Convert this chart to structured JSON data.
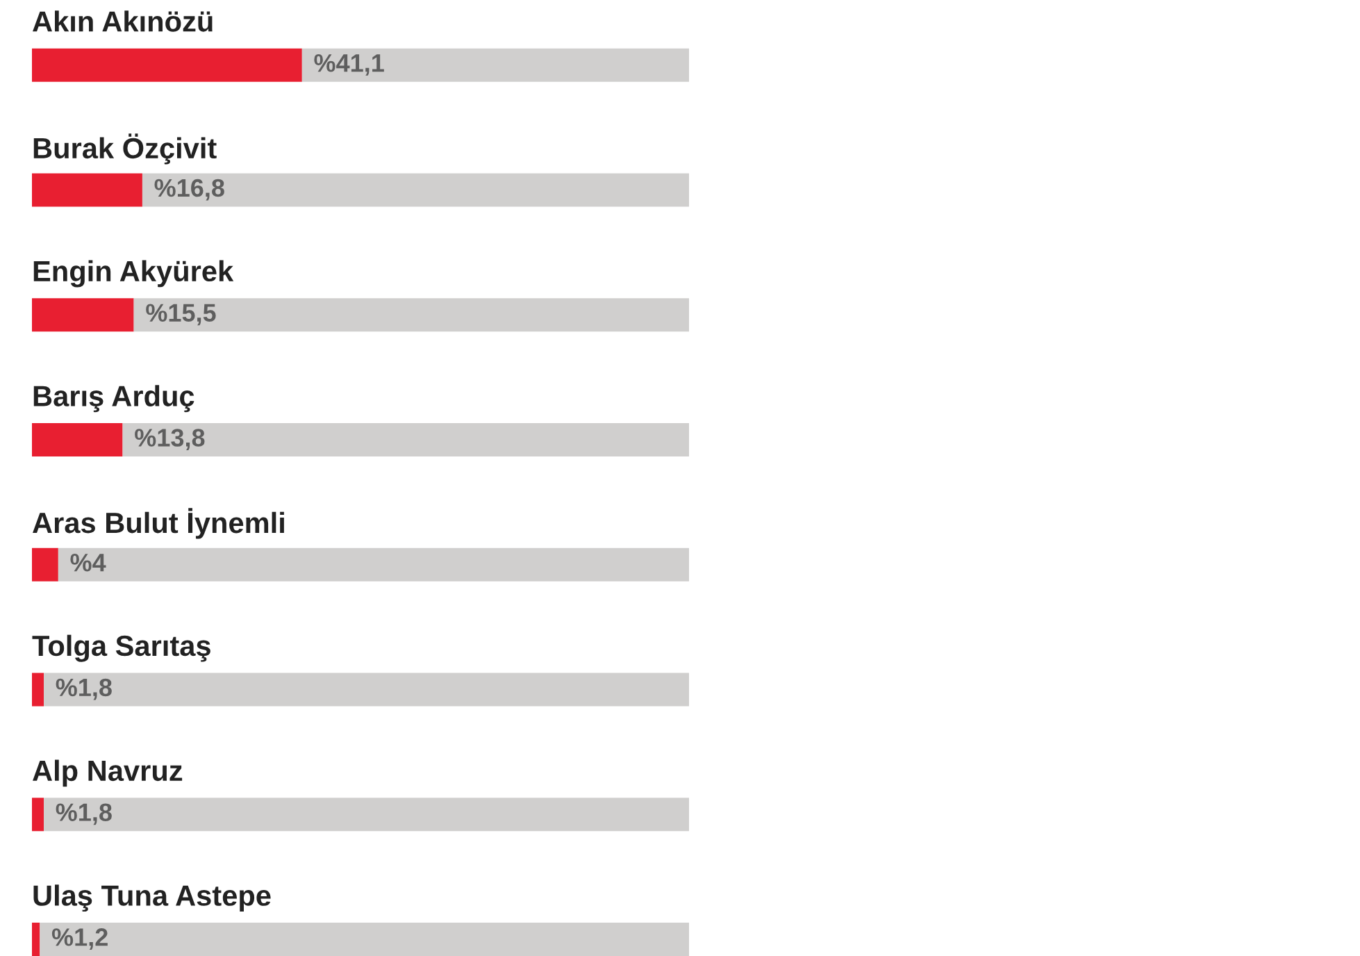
{
  "chart_data": {
    "type": "bar",
    "orientation": "horizontal",
    "stacked": true,
    "categories": [
      "Akın Akınözü",
      "Burak Özçivit",
      "Engin Akyürek",
      "Barış Arduç",
      "Aras Bulut İynemli",
      "Tolga Sarıtaş",
      "Alp Navruz",
      "Ulaş Tuna Astepe"
    ],
    "series": [
      {
        "color": "#e81f31",
        "values": [
          41.1,
          16.8,
          15.5,
          13.8,
          4,
          1.8,
          1.8,
          1.2
        ],
        "value_labels": [
          "%41,1",
          "%16,8",
          "%15,5",
          "%13,8",
          "%4",
          "%1,8",
          "%1,8",
          "%1,2"
        ]
      },
      {
        "color": "#d0cfce",
        "values": [
          58.9,
          83.2,
          84.5,
          86.2,
          96,
          98.2,
          98.2,
          98.8
        ]
      }
    ]
  }
}
